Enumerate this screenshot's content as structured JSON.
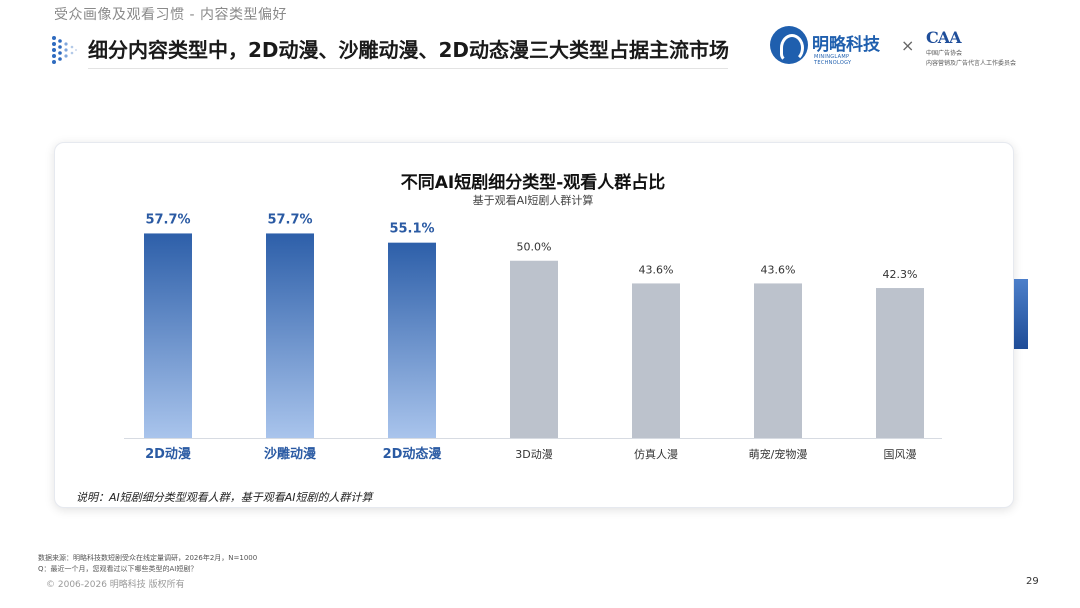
{
  "header": {
    "breadcrumb": "受众画像及观看习惯 - 内容类型偏好",
    "title": "细分内容类型中，2D动漫、沙雕动漫、2D动态漫三大类型占据主流市场",
    "logo_a_name": "明略科技",
    "logo_a_sub": "MININGLAMP TECHNOLOGY",
    "separator": "×",
    "logo_b_mark": "CAA",
    "logo_b_line1": "中国广告协会",
    "logo_b_line2": "内容营销及广告代言人工作委员会"
  },
  "chart_data": {
    "type": "bar",
    "title": "不同AI短剧细分类型-观看人群占比",
    "subtitle": "基于观看AI短剧人群计算",
    "categories": [
      "2D动漫",
      "沙雕动漫",
      "2D动态漫",
      "3D动漫",
      "仿真人漫",
      "萌宠/宠物漫",
      "国风漫"
    ],
    "values": [
      57.7,
      57.7,
      55.1,
      50.0,
      43.6,
      43.6,
      42.3
    ],
    "labels": [
      "57.7%",
      "57.7%",
      "55.1%",
      "50.0%",
      "43.6%",
      "43.6%",
      "42.3%"
    ],
    "highlight_count": 3,
    "ylim": [
      0,
      70
    ],
    "grid": false,
    "colors": {
      "highlight_top": "#2d5fa9",
      "highlight_bottom": "#a9c4ec",
      "normal": "#bcc2cc",
      "highlight_text": "#2a5aa3",
      "normal_text": "#333333"
    }
  },
  "note": "说明：AI短剧细分类型观看人群，基于观看AI短剧的人群计算",
  "footer": {
    "source": "数据来源：明略科技数短剧受众在线定量调研，2026年2月，N=1000",
    "question": "Q：最近一个月，您观看过以下哪些类型的AI短剧？",
    "copyright": "© 2006-2026 明略科技 版权所有",
    "page": "29"
  }
}
